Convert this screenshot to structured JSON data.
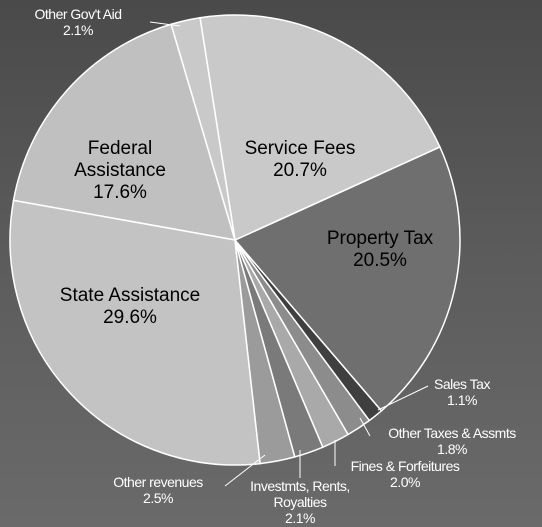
{
  "chart_data": {
    "type": "pie",
    "categories": [
      "Other Gov't Aid",
      "Service Fees",
      "Property Tax",
      "Sales Tax",
      "Other Taxes & Assmts",
      "Fines & Forfeitures",
      "Investmts, Rents, Royalties",
      "Other revenues",
      "State Assistance",
      "Federal Assistance"
    ],
    "values": [
      2.1,
      20.7,
      20.5,
      1.1,
      1.8,
      2.0,
      2.1,
      2.5,
      29.6,
      17.6
    ],
    "value_labels": [
      "2.1%",
      "20.7%",
      "20.5%",
      "1.1%",
      "1.8%",
      "2.0%",
      "2.1%",
      "2.5%",
      "29.6%",
      "17.6%"
    ],
    "colors": [
      "#c9c9c9",
      "#c9c9c9",
      "#6f6f6f",
      "#3f3f3f",
      "#8c8c8c",
      "#a9a9a9",
      "#7a7a7a",
      "#9b9b9b",
      "#c3c3c3",
      "#c0c0c0"
    ]
  }
}
